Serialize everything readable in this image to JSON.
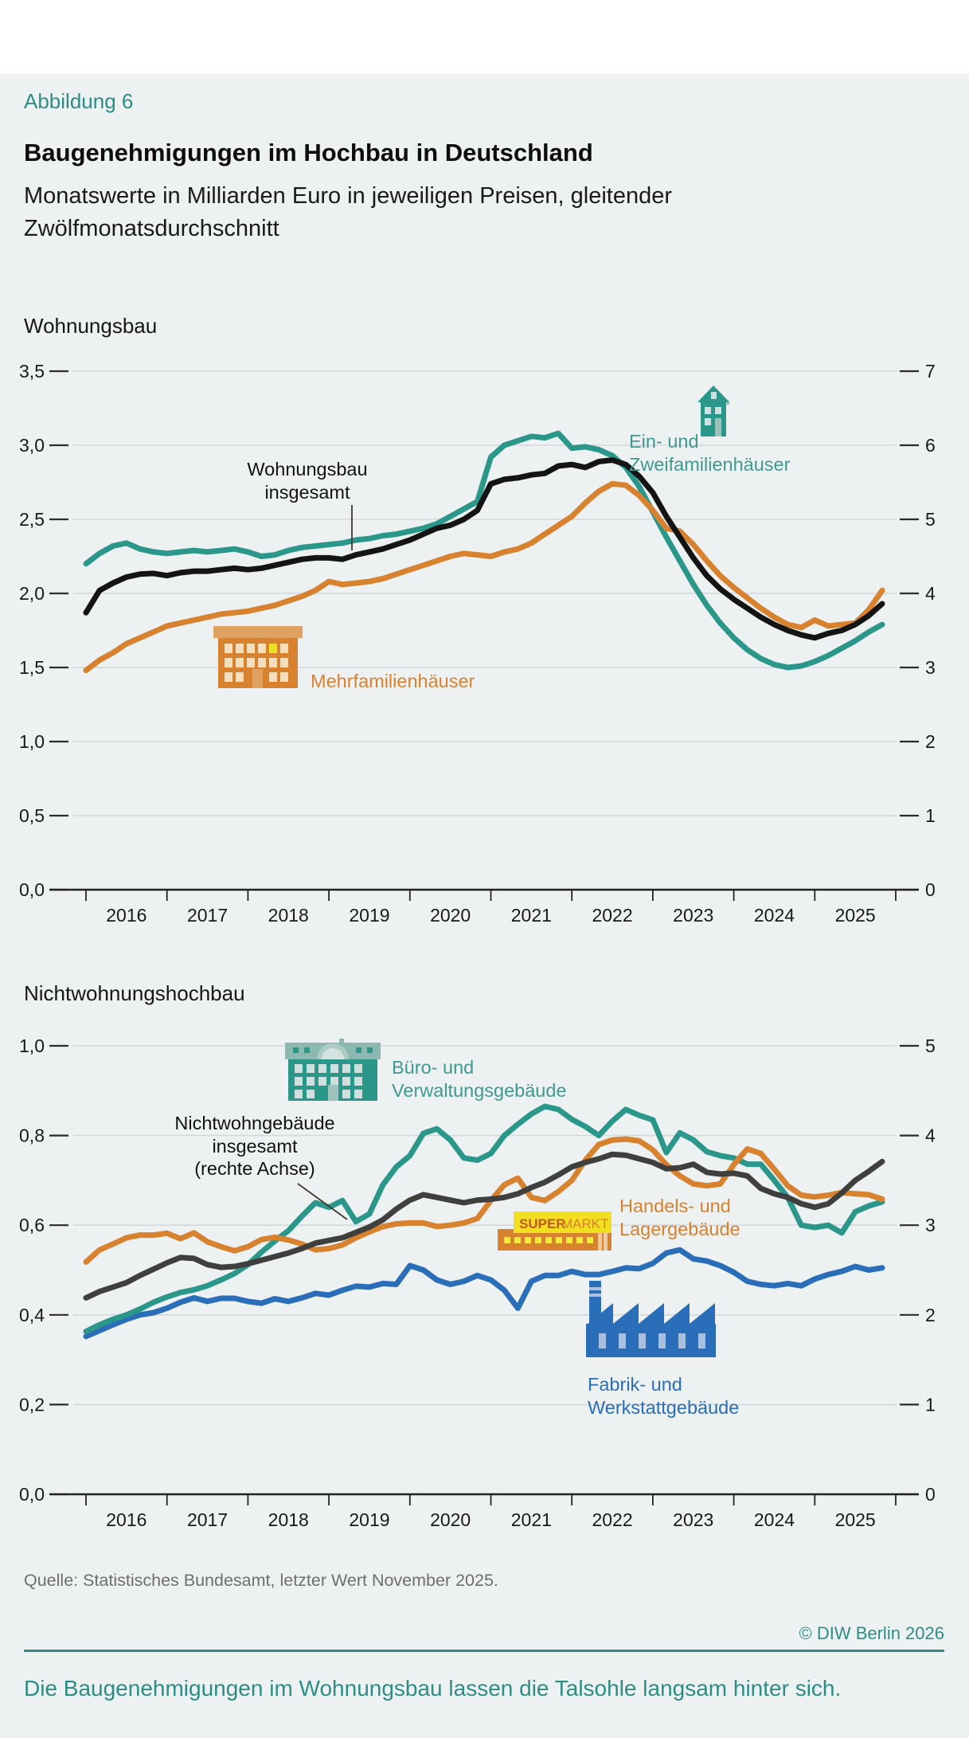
{
  "page": {
    "kicker": "Abbildung 6",
    "title": "Baugenehmigungen im Hochbau in Deutschland",
    "subtitle_lines": [
      "Monatswerte in Milliarden Euro in jeweiligen Preisen, gleitender",
      "Zwölfmonatsdurchschnitt"
    ],
    "source": "Quelle: Statistisches Bundesamt, letzter Wert November 2025.",
    "copyright": "© DIW Berlin 2026",
    "claim": "Die Baugenehmigungen im Wohnungsbau lassen die Talsohle langsam hinter sich."
  },
  "colors": {
    "background": "#edf1f2",
    "teal": "#2b968a",
    "teal_text": "#3f998f",
    "orange": "#d8812f",
    "black": "#141414",
    "dark_gray": "#3f3f3d",
    "blue": "#2a6db8",
    "gridline": "#d5d8d9",
    "accent_headline": "#2d8d86",
    "source_gray": "#6e6e6e"
  },
  "chart_data": [
    {
      "id": "w1",
      "type": "line",
      "section_label": "Wohnungsbau",
      "x_labels": [
        "2016",
        "2017",
        "2018",
        "2019",
        "2020",
        "2021",
        "2022",
        "2023",
        "2024",
        "2025"
      ],
      "x_range_months": [
        "2016-01",
        "2025-11"
      ],
      "x_step_months": 2,
      "y_left_labels": [
        "3,5",
        "3,0",
        "2,5",
        "2,0",
        "1,5",
        "1,0",
        "0,5",
        "0,0"
      ],
      "y_right_labels": [
        "7",
        "6",
        "5",
        "4",
        "3",
        "2",
        "1",
        "0"
      ],
      "y_left_range": [
        0,
        3.5
      ],
      "y_right_range": [
        0,
        7
      ],
      "grid": true,
      "annotation": {
        "lines": [
          "Wohnungsbau",
          "insgesamt"
        ]
      },
      "series": [
        {
          "name": "ein-und-zweifamilienhaeuser",
          "legend_lines": [
            "Ein- und",
            "Zweifamilienhäuser"
          ],
          "color": "#2b968a",
          "axis": "left",
          "values": [
            2.2,
            2.27,
            2.32,
            2.34,
            2.3,
            2.28,
            2.27,
            2.28,
            2.29,
            2.28,
            2.29,
            2.3,
            2.28,
            2.25,
            2.26,
            2.29,
            2.31,
            2.32,
            2.33,
            2.34,
            2.36,
            2.37,
            2.39,
            2.4,
            2.42,
            2.44,
            2.47,
            2.52,
            2.57,
            2.62,
            2.92,
            3.0,
            3.03,
            3.06,
            3.05,
            3.08,
            2.98,
            2.99,
            2.97,
            2.93,
            2.85,
            2.72,
            2.55,
            2.38,
            2.22,
            2.06,
            1.92,
            1.8,
            1.7,
            1.62,
            1.56,
            1.52,
            1.5,
            1.51,
            1.54,
            1.58,
            1.63,
            1.68,
            1.74,
            1.79
          ]
        },
        {
          "name": "mehrfamilienhaeuser",
          "legend_lines": [
            "Mehrfamilienhäuser"
          ],
          "color": "#d8812f",
          "axis": "left",
          "values": [
            1.48,
            1.55,
            1.6,
            1.66,
            1.7,
            1.74,
            1.78,
            1.8,
            1.82,
            1.84,
            1.86,
            1.87,
            1.88,
            1.9,
            1.92,
            1.95,
            1.98,
            2.02,
            2.08,
            2.06,
            2.07,
            2.08,
            2.1,
            2.13,
            2.16,
            2.19,
            2.22,
            2.25,
            2.27,
            2.26,
            2.25,
            2.28,
            2.3,
            2.34,
            2.4,
            2.46,
            2.52,
            2.61,
            2.69,
            2.74,
            2.73,
            2.66,
            2.56,
            2.44,
            2.42,
            2.33,
            2.22,
            2.12,
            2.04,
            1.97,
            1.9,
            1.84,
            1.79,
            1.77,
            1.82,
            1.78,
            1.79,
            1.8,
            1.89,
            2.02
          ]
        },
        {
          "name": "wohnungsbau-insgesamt",
          "legend_lines": [
            "Wohnungsbau",
            "insgesamt"
          ],
          "color": "#141414",
          "axis": "right",
          "values": [
            3.74,
            4.04,
            4.14,
            4.22,
            4.26,
            4.27,
            4.24,
            4.28,
            4.3,
            4.3,
            4.32,
            4.34,
            4.32,
            4.34,
            4.38,
            4.42,
            4.46,
            4.48,
            4.48,
            4.46,
            4.52,
            4.56,
            4.6,
            4.66,
            4.72,
            4.8,
            4.88,
            4.92,
            5.0,
            5.12,
            5.48,
            5.54,
            5.56,
            5.6,
            5.62,
            5.72,
            5.74,
            5.7,
            5.78,
            5.8,
            5.74,
            5.58,
            5.36,
            5.04,
            4.76,
            4.48,
            4.24,
            4.06,
            3.92,
            3.8,
            3.68,
            3.58,
            3.5,
            3.44,
            3.4,
            3.46,
            3.5,
            3.58,
            3.7,
            3.86
          ]
        }
      ]
    },
    {
      "id": "w2",
      "type": "line",
      "section_label": "Nichtwohnungshochbau",
      "x_labels": [
        "2016",
        "2017",
        "2018",
        "2019",
        "2020",
        "2021",
        "2022",
        "2023",
        "2024",
        "2025"
      ],
      "x_range_months": [
        "2016-01",
        "2025-11"
      ],
      "x_step_months": 2,
      "y_left_labels": [
        "1,0",
        "0,8",
        "0,6",
        "0,4",
        "0,2",
        "0,0"
      ],
      "y_right_labels": [
        "5",
        "4",
        "3",
        "2",
        "1",
        "0"
      ],
      "y_left_range": [
        0,
        1.0
      ],
      "y_right_range": [
        0,
        5
      ],
      "grid": true,
      "annotation": {
        "lines": [
          "Nichtwohngebäude",
          "insgesamt",
          "(rechte Achse)"
        ]
      },
      "series": [
        {
          "name": "fabrik-und-werkstattgebaeude",
          "legend_lines": [
            "Fabrik- und",
            "Werkstattgebäude"
          ],
          "color": "#2a6db8",
          "axis": "left",
          "values": [
            0.352,
            0.365,
            0.378,
            0.39,
            0.4,
            0.405,
            0.415,
            0.428,
            0.438,
            0.43,
            0.437,
            0.437,
            0.43,
            0.426,
            0.436,
            0.43,
            0.438,
            0.448,
            0.444,
            0.455,
            0.464,
            0.462,
            0.47,
            0.468,
            0.51,
            0.5,
            0.478,
            0.468,
            0.475,
            0.488,
            0.478,
            0.455,
            0.415,
            0.475,
            0.488,
            0.488,
            0.497,
            0.49,
            0.49,
            0.497,
            0.505,
            0.503,
            0.515,
            0.538,
            0.545,
            0.525,
            0.52,
            0.51,
            0.495,
            0.475,
            0.468,
            0.465,
            0.47,
            0.465,
            0.48,
            0.49,
            0.497,
            0.508,
            0.5,
            0.505
          ]
        },
        {
          "name": "buero-und-verwaltungsgebaeude",
          "legend_lines": [
            "Büro- und",
            "Verwaltungsgebäude"
          ],
          "color": "#2b968a",
          "axis": "left",
          "values": [
            0.363,
            0.378,
            0.39,
            0.4,
            0.413,
            0.428,
            0.44,
            0.45,
            0.456,
            0.465,
            0.478,
            0.492,
            0.512,
            0.54,
            0.565,
            0.588,
            0.62,
            0.65,
            0.64,
            0.655,
            0.608,
            0.625,
            0.69,
            0.73,
            0.755,
            0.805,
            0.815,
            0.79,
            0.75,
            0.745,
            0.76,
            0.8,
            0.825,
            0.848,
            0.865,
            0.858,
            0.836,
            0.82,
            0.8,
            0.832,
            0.858,
            0.845,
            0.835,
            0.762,
            0.806,
            0.79,
            0.764,
            0.755,
            0.75,
            0.736,
            0.736,
            0.7,
            0.662,
            0.6,
            0.595,
            0.6,
            0.583,
            0.63,
            0.643,
            0.652
          ]
        },
        {
          "name": "handels-und-lagergebaeude",
          "legend_lines": [
            "Handels- und",
            "Lagergebäude"
          ],
          "color": "#d8812f",
          "axis": "left",
          "values": [
            0.518,
            0.545,
            0.558,
            0.572,
            0.578,
            0.578,
            0.582,
            0.57,
            0.583,
            0.563,
            0.552,
            0.543,
            0.552,
            0.568,
            0.573,
            0.567,
            0.558,
            0.545,
            0.548,
            0.556,
            0.572,
            0.585,
            0.597,
            0.603,
            0.605,
            0.605,
            0.597,
            0.6,
            0.605,
            0.615,
            0.655,
            0.69,
            0.705,
            0.662,
            0.655,
            0.675,
            0.7,
            0.745,
            0.78,
            0.79,
            0.792,
            0.788,
            0.768,
            0.735,
            0.71,
            0.692,
            0.688,
            0.692,
            0.735,
            0.77,
            0.76,
            0.725,
            0.688,
            0.667,
            0.663,
            0.667,
            0.673,
            0.67,
            0.668,
            0.658
          ]
        },
        {
          "name": "nichtwohngebaeude-insgesamt",
          "legend_lines": [
            "Nichtwohngebäude",
            "insgesamt",
            "(rechte Achse)"
          ],
          "color": "#3f3f3d",
          "axis": "right",
          "values": [
            2.19,
            2.26,
            2.31,
            2.36,
            2.44,
            2.51,
            2.58,
            2.64,
            2.63,
            2.56,
            2.53,
            2.54,
            2.57,
            2.61,
            2.65,
            2.69,
            2.74,
            2.8,
            2.83,
            2.86,
            2.92,
            2.98,
            3.06,
            3.18,
            3.28,
            3.34,
            3.31,
            3.28,
            3.25,
            3.28,
            3.29,
            3.31,
            3.35,
            3.42,
            3.48,
            3.56,
            3.65,
            3.7,
            3.74,
            3.79,
            3.78,
            3.74,
            3.7,
            3.63,
            3.64,
            3.68,
            3.59,
            3.57,
            3.58,
            3.55,
            3.41,
            3.35,
            3.31,
            3.24,
            3.2,
            3.24,
            3.36,
            3.5,
            3.6,
            3.71
          ]
        }
      ],
      "icon_texts": {
        "supermarkt_bold": "SUPER",
        "supermarkt_regular": "MARKT"
      }
    }
  ]
}
